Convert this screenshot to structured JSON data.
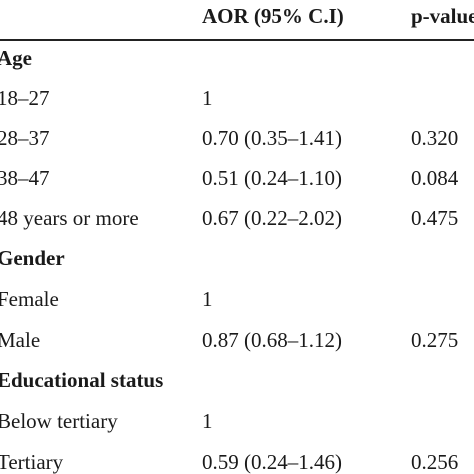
{
  "header": {
    "label_col": "",
    "aor": "AOR (95% C.I)",
    "pvalue": "p-value"
  },
  "rows": [
    {
      "type": "section",
      "label": "Age",
      "aor": "",
      "p": ""
    },
    {
      "type": "item",
      "label": "18–27",
      "aor": "1",
      "p": ""
    },
    {
      "type": "item",
      "label": "28–37",
      "aor": "0.70 (0.35–1.41)",
      "p": "0.320"
    },
    {
      "type": "item",
      "label": "38–47",
      "aor": "0.51 (0.24–1.10)",
      "p": "0.084"
    },
    {
      "type": "item",
      "label": "48 years or more",
      "aor": "0.67 (0.22–2.02)",
      "p": "0.475"
    },
    {
      "type": "section",
      "label": "Gender",
      "aor": "",
      "p": ""
    },
    {
      "type": "item",
      "label": "Female",
      "aor": "1",
      "p": ""
    },
    {
      "type": "item",
      "label": "Male",
      "aor": "0.87 (0.68–1.12)",
      "p": "0.275"
    },
    {
      "type": "section",
      "label": "Educational status",
      "aor": "",
      "p": ""
    },
    {
      "type": "item",
      "label": "Below tertiary",
      "aor": "1",
      "p": ""
    },
    {
      "type": "item",
      "label": "Tertiary",
      "aor": "0.59 (0.24–1.46)",
      "p": "0.256"
    }
  ]
}
